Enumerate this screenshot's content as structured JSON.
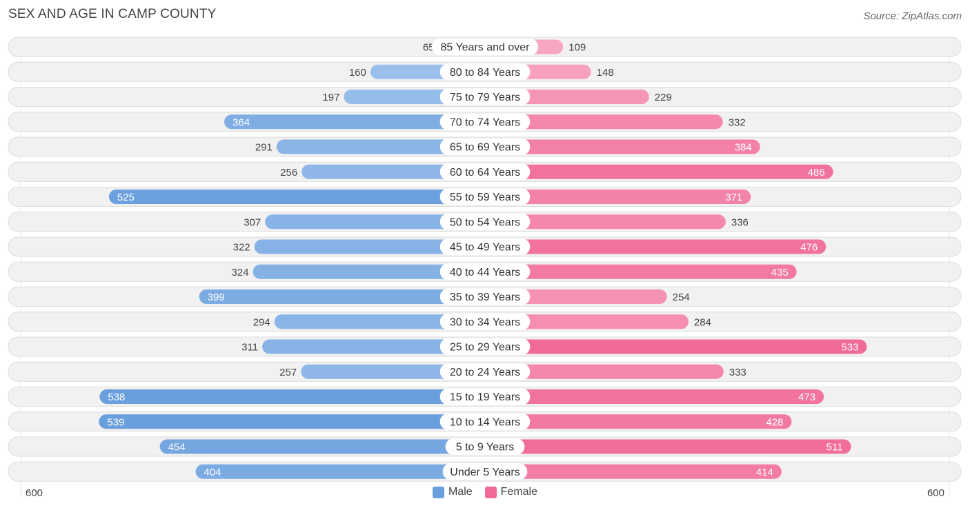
{
  "header": {
    "title": "SEX AND AGE IN CAMP COUNTY",
    "source": "Source: ZipAtlas.com"
  },
  "legend": {
    "male_label": "Male",
    "female_label": "Female"
  },
  "axis": {
    "left_label": "600",
    "right_label": "600"
  },
  "colors": {
    "male_light": "#a7c8ef",
    "male_dark": "#6a9fdd",
    "female_light": "#f8a8c2",
    "female_dark": "#f06a97",
    "row_bg": "#f1f1f1",
    "row_border": "#dcdcdc"
  },
  "chart_data": {
    "type": "bar",
    "orientation": "horizontal-diverging",
    "title": "SEX AND AGE IN CAMP COUNTY",
    "xlim": [
      -600,
      600
    ],
    "categories": [
      "85 Years and over",
      "80 to 84 Years",
      "75 to 79 Years",
      "70 to 74 Years",
      "65 to 69 Years",
      "60 to 64 Years",
      "55 to 59 Years",
      "50 to 54 Years",
      "45 to 49 Years",
      "40 to 44 Years",
      "35 to 39 Years",
      "30 to 34 Years",
      "25 to 29 Years",
      "20 to 24 Years",
      "15 to 19 Years",
      "10 to 14 Years",
      "5 to 9 Years",
      "Under 5 Years"
    ],
    "series": [
      {
        "name": "Male",
        "values": [
          65,
          160,
          197,
          364,
          291,
          256,
          525,
          307,
          322,
          324,
          399,
          294,
          311,
          257,
          538,
          539,
          454,
          404
        ]
      },
      {
        "name": "Female",
        "values": [
          109,
          148,
          229,
          332,
          384,
          486,
          371,
          336,
          476,
          435,
          254,
          284,
          533,
          333,
          473,
          428,
          511,
          414
        ]
      }
    ]
  }
}
